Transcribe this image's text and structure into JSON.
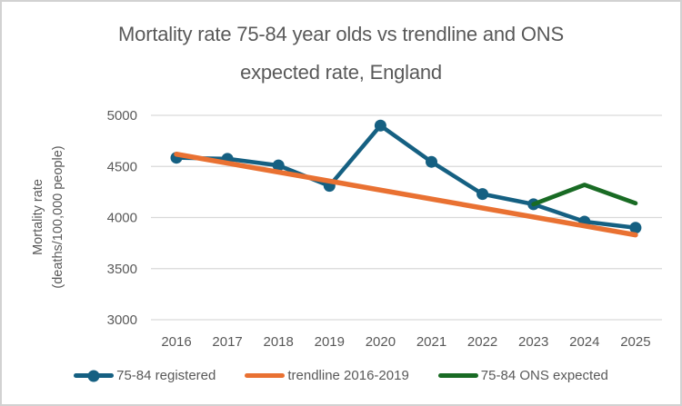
{
  "window": {
    "background": "#ffffff",
    "frame_border_color": "#d2d2d2"
  },
  "title": {
    "line1": "Mortality rate 75-84 year olds vs trendline and ONS",
    "line2": "expected rate, England",
    "color": "#595959"
  },
  "y_axis": {
    "label_line1": "Mortality rate",
    "label_line2": "(deaths/100,000 people)",
    "tick_labels": [
      "5000",
      "4500",
      "4000",
      "3500",
      "3000"
    ]
  },
  "x_axis": {
    "labels": [
      "2016",
      "2017",
      "2018",
      "2019",
      "2020",
      "2021",
      "2022",
      "2023",
      "2024",
      "2025"
    ]
  },
  "legend": {
    "items": [
      {
        "label": "75-84 registered",
        "color": "#156082",
        "marker": true
      },
      {
        "label": "trendline 2016-2019",
        "color": "#e97132",
        "marker": false
      },
      {
        "label": "75-84 ONS expected",
        "color": "#196b24",
        "marker": false
      }
    ]
  },
  "colors": {
    "registered": "#156082",
    "trendline": "#e97132",
    "ons_expected": "#196b24",
    "gridline": "#d9d9d9",
    "axis_text": "#595959"
  },
  "chart_data": {
    "type": "line",
    "title": "Mortality rate 75-84 year olds vs trendline and ONS expected rate, England",
    "xlabel": "",
    "ylabel": "Mortality rate (deaths/100,000 people)",
    "x": [
      2016,
      2017,
      2018,
      2019,
      2020,
      2021,
      2022,
      2023,
      2024,
      2025
    ],
    "ylim": [
      3000,
      5000
    ],
    "yticks": [
      3000,
      3500,
      4000,
      4500,
      5000
    ],
    "grid": true,
    "legend_position": "bottom",
    "series": [
      {
        "name": "75-84 registered",
        "color": "#156082",
        "marker": "circle",
        "x": [
          2016,
          2017,
          2018,
          2019,
          2020,
          2021,
          2022,
          2023,
          2024,
          2025
        ],
        "values": [
          4585,
          4575,
          4510,
          4310,
          4900,
          4545,
          4230,
          4130,
          3960,
          3900
        ]
      },
      {
        "name": "trendline 2016-2019",
        "color": "#e97132",
        "marker": "none",
        "x": [
          2016,
          2025
        ],
        "values": [
          4620,
          3830
        ]
      },
      {
        "name": "75-84 ONS expected",
        "color": "#196b24",
        "marker": "none",
        "x": [
          2023,
          2024,
          2025
        ],
        "values": [
          4130,
          4320,
          4140
        ]
      }
    ]
  }
}
